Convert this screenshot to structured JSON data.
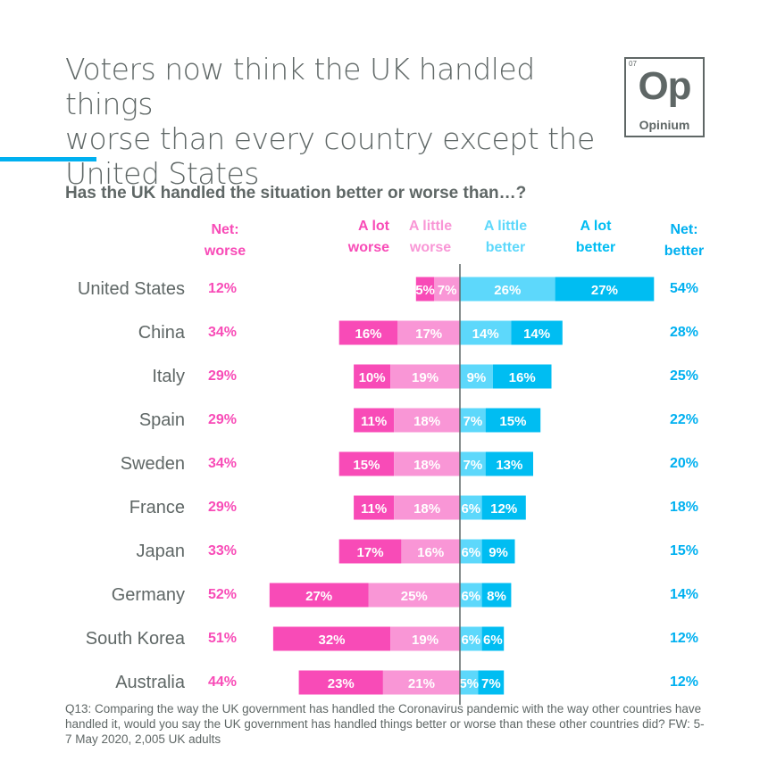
{
  "title_lines": [
    "Voters now think the UK handled things",
    "worse than every country except the",
    "United States"
  ],
  "logo": {
    "number": "07",
    "symbol": "Op",
    "name": "Opinium"
  },
  "colors": {
    "a_lot_worse": "#f84bb7",
    "a_little_worse": "#f996d6",
    "a_little_better": "#5dd8fb",
    "a_lot_better": "#00bdf2",
    "net_worse_text": "#f84bb7",
    "net_better_text": "#00b0f0",
    "country_text": "#5f6766",
    "axis": "#5f6766",
    "accent_rule": "#00b0f0"
  },
  "chart_data": {
    "type": "bar",
    "orientation": "horizontal-diverging-stacked",
    "title": "Has the UK handled the situation better or worse than…?",
    "categories": [
      "United States",
      "China",
      "Italy",
      "Spain",
      "Sweden",
      "France",
      "Japan",
      "Germany",
      "South Korea",
      "Australia"
    ],
    "series": [
      {
        "name": "A lot worse",
        "header": [
          "A lot",
          "worse"
        ],
        "values": [
          5,
          16,
          10,
          11,
          15,
          11,
          17,
          27,
          32,
          23
        ]
      },
      {
        "name": "A little worse",
        "header": [
          "A little",
          "worse"
        ],
        "values": [
          7,
          17,
          19,
          18,
          18,
          18,
          16,
          25,
          19,
          21
        ]
      },
      {
        "name": "A little better",
        "header": [
          "A little",
          "better"
        ],
        "values": [
          26,
          14,
          9,
          7,
          7,
          6,
          6,
          6,
          6,
          5
        ]
      },
      {
        "name": "A lot better",
        "header": [
          "A lot",
          "better"
        ],
        "values": [
          27,
          14,
          16,
          15,
          13,
          12,
          9,
          8,
          6,
          7
        ]
      }
    ],
    "net_worse": {
      "header": [
        "Net:",
        "worse"
      ],
      "values": [
        12,
        34,
        29,
        29,
        34,
        29,
        33,
        52,
        51,
        44
      ]
    },
    "net_better": {
      "header": [
        "Net:",
        "better"
      ],
      "values": [
        54,
        28,
        25,
        22,
        20,
        18,
        15,
        14,
        12,
        12
      ]
    },
    "value_suffix": "%",
    "xlabel": "",
    "ylabel": "",
    "grid": false,
    "legend": "column headers above bars"
  },
  "footnote": "Q13: Comparing the way the UK government has handled the Coronavirus pandemic with the way other countries have handled it, would you say the UK government has handled things better or worse than these other countries did? FW: 5-7 May 2020, 2,005 UK adults"
}
